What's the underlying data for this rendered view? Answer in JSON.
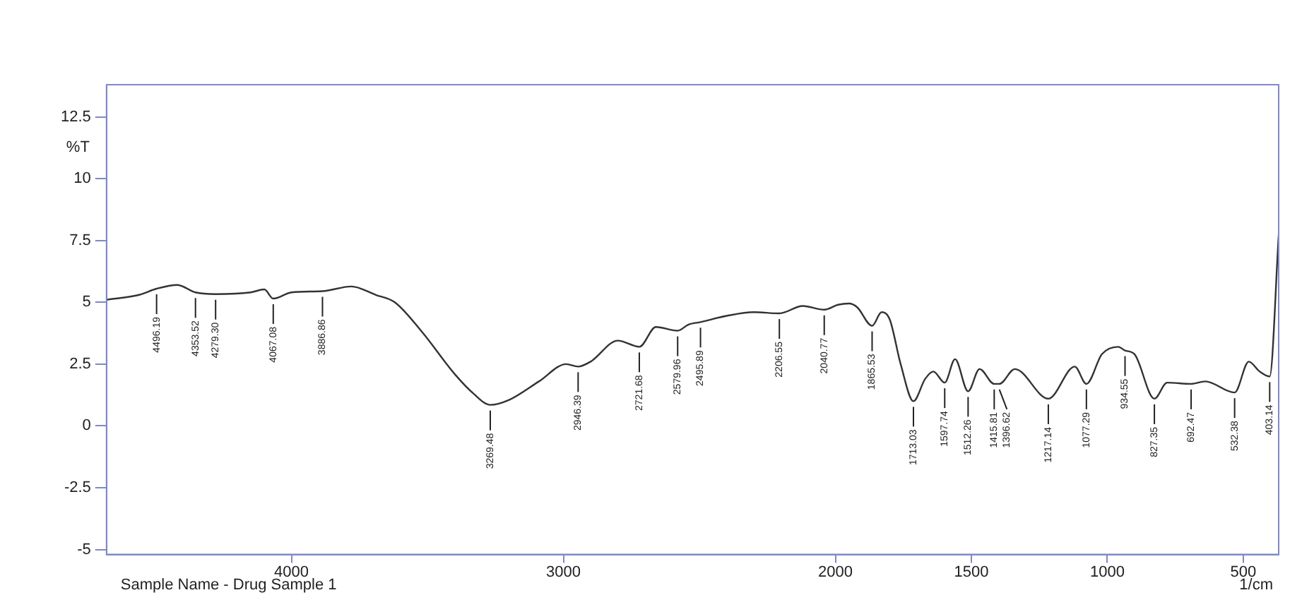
{
  "chart_data": {
    "type": "line",
    "xlabel": "1/cm",
    "ylabel": "%T",
    "xlim": [
      4680,
      370
    ],
    "xticks": [
      4000,
      3000,
      2000,
      1500,
      1000,
      500
    ],
    "ylim": [
      -5.2,
      13.8
    ],
    "yticks": [
      -5,
      -2.5,
      0,
      2.5,
      5,
      7.5,
      10,
      12.5
    ],
    "grid": false,
    "legend": false,
    "marker": "none",
    "line_style": "solid",
    "series": [
      {
        "color": "#333333",
        "x": [
          4680,
          4560,
          4496,
          4420,
          4353,
          4279,
          4150,
          4100,
          4067,
          4000,
          3886,
          3780,
          3690,
          3620,
          3520,
          3400,
          3330,
          3269,
          3200,
          3090,
          2990,
          2946,
          2900,
          2800,
          2721,
          2660,
          2580,
          2540,
          2496,
          2400,
          2300,
          2206,
          2120,
          2041,
          1990,
          1950,
          1920,
          1865,
          1830,
          1800,
          1760,
          1713,
          1670,
          1640,
          1598,
          1560,
          1512,
          1470,
          1416,
          1397,
          1340,
          1217,
          1120,
          1077,
          1020,
          960,
          935,
          900,
          827,
          780,
          692,
          640,
          532,
          480,
          440,
          403,
          370
        ],
        "values": [
          5.1,
          5.3,
          5.55,
          5.7,
          5.4,
          5.33,
          5.4,
          5.52,
          5.15,
          5.4,
          5.45,
          5.64,
          5.3,
          5.0,
          3.8,
          2.1,
          1.3,
          0.85,
          1.05,
          1.8,
          2.5,
          2.4,
          2.6,
          3.45,
          3.2,
          4.0,
          3.85,
          4.1,
          4.2,
          4.45,
          4.6,
          4.55,
          4.85,
          4.7,
          4.9,
          4.95,
          4.8,
          4.05,
          4.6,
          4.3,
          2.5,
          1.0,
          1.9,
          2.2,
          1.75,
          2.7,
          1.4,
          2.3,
          1.7,
          1.7,
          2.3,
          1.1,
          2.4,
          1.7,
          2.9,
          3.2,
          3.05,
          2.9,
          1.1,
          1.75,
          1.7,
          1.8,
          1.35,
          2.6,
          2.2,
          2.0,
          7.7
        ]
      }
    ],
    "annotations": [
      "Sample Name - Drug Sample 1",
      {
        "text": "4496.19",
        "x": 4496,
        "y": 5.55
      },
      {
        "text": "4353.52",
        "x": 4353,
        "y": 5.4
      },
      {
        "text": "4279.30",
        "x": 4279,
        "y": 5.33
      },
      {
        "text": "4067.08",
        "x": 4067,
        "y": 5.15
      },
      {
        "text": "3886.86",
        "x": 3886,
        "y": 5.45
      },
      {
        "text": "3269.48",
        "x": 3269,
        "y": 0.85
      },
      {
        "text": "2946.39",
        "x": 2946,
        "y": 2.4
      },
      {
        "text": "2721.68",
        "x": 2721,
        "y": 3.2
      },
      {
        "text": "2579.96",
        "x": 2580,
        "y": 3.85
      },
      {
        "text": "2495.89",
        "x": 2496,
        "y": 4.2
      },
      {
        "text": "2206.55",
        "x": 2206,
        "y": 4.55
      },
      {
        "text": "2040.77",
        "x": 2041,
        "y": 4.7
      },
      {
        "text": "1865.53",
        "x": 1865,
        "y": 4.05
      },
      {
        "text": "1713.03",
        "x": 1713,
        "y": 1.0
      },
      {
        "text": "1597.74",
        "x": 1598,
        "y": 1.75
      },
      {
        "text": "1512.26",
        "x": 1512,
        "y": 1.4
      },
      {
        "text": "1415.81",
        "x": 1416,
        "y": 1.7
      },
      {
        "text": "1396.62",
        "x": 1397,
        "y": 1.7
      },
      {
        "text": "1217.14",
        "x": 1217,
        "y": 1.1
      },
      {
        "text": "1077.29",
        "x": 1077,
        "y": 1.7
      },
      {
        "text": "934.55",
        "x": 935,
        "y": 3.05
      },
      {
        "text": "827.35",
        "x": 827,
        "y": 1.1
      },
      {
        "text": "692.47",
        "x": 692,
        "y": 1.7
      },
      {
        "text": "532.38",
        "x": 532,
        "y": 1.35
      },
      {
        "text": "403.14",
        "x": 403,
        "y": 2.0
      }
    ]
  }
}
